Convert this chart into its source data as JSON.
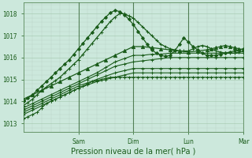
{
  "title": "Pression niveau de la mer( hPa )",
  "yticks": [
    1013,
    1014,
    1015,
    1016,
    1017,
    1018
  ],
  "ylim": [
    1012.6,
    1018.5
  ],
  "xlim": [
    0,
    96
  ],
  "bg_color": "#cce8dc",
  "plot_bg_color": "#cce8dc",
  "line_color": "#1a5c1a",
  "day_labels": [
    "Sam",
    "Dim",
    "Lun",
    "Mar"
  ],
  "day_positions": [
    24,
    48,
    72,
    96
  ],
  "series": [
    {
      "x": [
        0,
        2,
        4,
        6,
        8,
        10,
        12,
        14,
        16,
        18,
        20,
        22,
        24,
        26,
        28,
        30,
        32,
        34,
        36,
        38,
        40,
        42,
        44,
        46,
        48,
        50,
        52,
        54,
        56,
        58,
        60,
        62,
        64,
        66,
        68,
        70,
        72,
        74,
        76,
        78,
        80,
        82,
        84,
        86,
        88,
        90,
        92,
        94,
        96
      ],
      "y": [
        1013.2,
        1013.3,
        1013.4,
        1013.5,
        1013.7,
        1013.9,
        1014.0,
        1014.1,
        1014.2,
        1014.3,
        1014.4,
        1014.5,
        1014.6,
        1014.7,
        1014.8,
        1014.9,
        1014.95,
        1015.0,
        1015.05,
        1015.1,
        1015.1,
        1015.1,
        1015.1,
        1015.1,
        1015.1,
        1015.1,
        1015.1,
        1015.1,
        1015.1,
        1015.1,
        1015.1,
        1015.1,
        1015.1,
        1015.1,
        1015.1,
        1015.1,
        1015.1,
        1015.1,
        1015.1,
        1015.1,
        1015.1,
        1015.1,
        1015.1,
        1015.1,
        1015.1,
        1015.1,
        1015.1,
        1015.1,
        1015.1
      ],
      "marker": "+",
      "lw": 0.8,
      "ms": 2.5
    },
    {
      "x": [
        0,
        4,
        8,
        12,
        16,
        20,
        24,
        28,
        32,
        36,
        40,
        44,
        48,
        52,
        56,
        60,
        64,
        68,
        72,
        76,
        80,
        84,
        88,
        92,
        96
      ],
      "y": [
        1013.4,
        1013.6,
        1013.8,
        1014.0,
        1014.2,
        1014.4,
        1014.6,
        1014.75,
        1014.9,
        1015.0,
        1015.1,
        1015.2,
        1015.3,
        1015.3,
        1015.3,
        1015.3,
        1015.3,
        1015.3,
        1015.3,
        1015.3,
        1015.3,
        1015.3,
        1015.3,
        1015.3,
        1015.3
      ],
      "marker": "+",
      "lw": 0.8,
      "ms": 2.5
    },
    {
      "x": [
        0,
        4,
        8,
        12,
        16,
        20,
        24,
        28,
        32,
        36,
        40,
        44,
        48,
        52,
        56,
        60,
        64,
        68,
        72,
        76,
        80,
        84,
        88,
        92,
        96
      ],
      "y": [
        1013.5,
        1013.7,
        1013.9,
        1014.1,
        1014.3,
        1014.5,
        1014.7,
        1014.85,
        1015.0,
        1015.15,
        1015.3,
        1015.4,
        1015.5,
        1015.5,
        1015.5,
        1015.5,
        1015.5,
        1015.5,
        1015.5,
        1015.5,
        1015.5,
        1015.5,
        1015.5,
        1015.5,
        1015.5
      ],
      "marker": "+",
      "lw": 0.8,
      "ms": 2.5
    },
    {
      "x": [
        0,
        4,
        8,
        12,
        16,
        20,
        24,
        28,
        32,
        36,
        40,
        44,
        48,
        52,
        56,
        60,
        64,
        68,
        72,
        76,
        80,
        84,
        88,
        92,
        96
      ],
      "y": [
        1013.6,
        1013.8,
        1014.0,
        1014.2,
        1014.4,
        1014.6,
        1014.8,
        1015.0,
        1015.2,
        1015.4,
        1015.6,
        1015.7,
        1015.8,
        1015.85,
        1015.9,
        1015.95,
        1016.0,
        1016.0,
        1016.0,
        1016.0,
        1016.0,
        1016.0,
        1016.0,
        1016.0,
        1016.0
      ],
      "marker": "+",
      "lw": 0.8,
      "ms": 2.5
    },
    {
      "x": [
        0,
        4,
        8,
        12,
        16,
        20,
        24,
        28,
        32,
        36,
        40,
        44,
        48,
        52,
        56,
        60,
        64,
        68,
        72,
        76,
        80,
        84,
        88,
        92,
        96
      ],
      "y": [
        1013.7,
        1013.9,
        1014.1,
        1014.3,
        1014.5,
        1014.7,
        1014.9,
        1015.1,
        1015.3,
        1015.55,
        1015.8,
        1015.95,
        1016.1,
        1016.1,
        1016.15,
        1016.15,
        1016.2,
        1016.2,
        1016.2,
        1016.2,
        1016.2,
        1016.2,
        1016.2,
        1016.2,
        1016.2
      ],
      "marker": "+",
      "lw": 0.8,
      "ms": 2.5
    },
    {
      "x": [
        0,
        2,
        4,
        6,
        8,
        10,
        12,
        14,
        16,
        18,
        20,
        22,
        24,
        26,
        28,
        30,
        32,
        34,
        36,
        38,
        40,
        42,
        44,
        46,
        48,
        50,
        52,
        54,
        56,
        58,
        60,
        62,
        64,
        66,
        68,
        70,
        72,
        74,
        76,
        78,
        80,
        82,
        84,
        86,
        88,
        90,
        92,
        94,
        96
      ],
      "y": [
        1013.8,
        1013.95,
        1014.1,
        1014.3,
        1014.5,
        1014.65,
        1014.8,
        1014.95,
        1015.1,
        1015.3,
        1015.5,
        1015.7,
        1015.9,
        1016.15,
        1016.4,
        1016.65,
        1016.9,
        1017.15,
        1017.4,
        1017.65,
        1017.85,
        1018.0,
        1018.0,
        1017.9,
        1017.8,
        1017.6,
        1017.4,
        1017.2,
        1017.0,
        1016.8,
        1016.6,
        1016.5,
        1016.4,
        1016.35,
        1016.3,
        1016.3,
        1016.3,
        1016.4,
        1016.5,
        1016.55,
        1016.5,
        1016.4,
        1016.3,
        1016.25,
        1016.2,
        1016.2,
        1016.2,
        1016.25,
        1016.3
      ],
      "marker": "+",
      "lw": 0.9,
      "ms": 2.5
    },
    {
      "x": [
        0,
        2,
        4,
        6,
        8,
        10,
        12,
        14,
        16,
        18,
        20,
        22,
        24,
        26,
        28,
        30,
        32,
        34,
        36,
        38,
        40,
        42,
        44,
        46,
        48,
        50,
        52,
        54,
        56,
        58,
        60,
        62,
        64,
        66,
        68,
        70,
        72,
        74,
        76,
        78,
        80,
        82,
        84,
        86,
        88,
        90,
        92,
        94,
        96
      ],
      "y": [
        1014.0,
        1014.15,
        1014.3,
        1014.5,
        1014.7,
        1014.9,
        1015.1,
        1015.3,
        1015.5,
        1015.7,
        1015.9,
        1016.15,
        1016.4,
        1016.65,
        1016.9,
        1017.15,
        1017.4,
        1017.65,
        1017.85,
        1018.05,
        1018.15,
        1018.1,
        1017.95,
        1017.75,
        1017.5,
        1017.2,
        1016.9,
        1016.6,
        1016.35,
        1016.2,
        1016.1,
        1016.05,
        1016.1,
        1016.3,
        1016.6,
        1016.9,
        1016.7,
        1016.5,
        1016.35,
        1016.2,
        1016.1,
        1016.1,
        1016.1,
        1016.15,
        1016.2,
        1016.25,
        1016.3,
        1016.35,
        1016.4
      ],
      "marker": "D",
      "lw": 0.9,
      "ms": 2.0
    },
    {
      "x": [
        0,
        4,
        8,
        12,
        16,
        20,
        24,
        28,
        32,
        36,
        40,
        44,
        48,
        52,
        56,
        60,
        64,
        68,
        72,
        76,
        80,
        82,
        84,
        86,
        88,
        90,
        92,
        94,
        96
      ],
      "y": [
        1014.1,
        1014.3,
        1014.5,
        1014.7,
        1014.9,
        1015.1,
        1015.3,
        1015.5,
        1015.7,
        1015.9,
        1016.1,
        1016.3,
        1016.5,
        1016.5,
        1016.45,
        1016.4,
        1016.35,
        1016.3,
        1016.25,
        1016.3,
        1016.35,
        1016.4,
        1016.45,
        1016.5,
        1016.55,
        1016.5,
        1016.45,
        1016.4,
        1016.35
      ],
      "marker": "^",
      "lw": 0.9,
      "ms": 3
    }
  ]
}
